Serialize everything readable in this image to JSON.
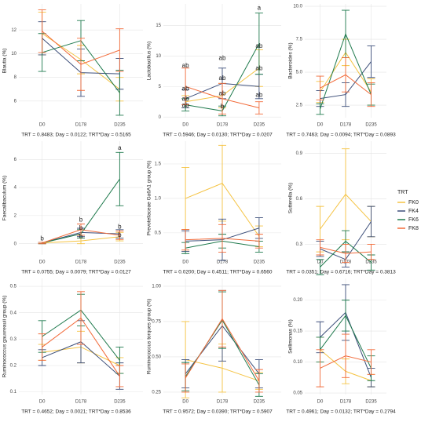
{
  "legend_title": "TRT",
  "chart_data": [
    {
      "type": "line",
      "ylabel": "Blautia (%)",
      "categories": [
        "D0",
        "D178",
        "D235"
      ],
      "ylim": [
        4.6,
        14.2
      ],
      "yticks": [
        6,
        8,
        10,
        12
      ],
      "series": [
        {
          "name": "FK0",
          "color": "#f5c342",
          "values": [
            11.7,
            9.5,
            7.0
          ],
          "errors": [
            1.8,
            1.2,
            1.0
          ]
        },
        {
          "name": "FK4",
          "color": "#3d4f7a",
          "values": [
            11.3,
            8.4,
            8.3
          ],
          "errors": [
            1.4,
            2.0,
            1.3
          ]
        },
        {
          "name": "FK6",
          "color": "#1f7a4d",
          "values": [
            10.1,
            11.1,
            6.7
          ],
          "errors": [
            1.6,
            1.7,
            1.9
          ]
        },
        {
          "name": "FK8",
          "color": "#f26b3a",
          "values": [
            11.9,
            9.1,
            10.3
          ],
          "errors": [
            1.8,
            2.2,
            1.8
          ]
        }
      ],
      "caption": "TRT = 0.8483; Day = 0.0122; TRT*Day = 0.5165"
    },
    {
      "type": "line",
      "ylabel": "Lactobacillus (%)",
      "categories": [
        "D0",
        "D178",
        "D235"
      ],
      "ylim": [
        -0.1,
        18.5
      ],
      "yticks": [
        0,
        5,
        10,
        15
      ],
      "series": [
        {
          "name": "FK0",
          "color": "#f5c342",
          "values": [
            2.5,
            3.5,
            8.0
          ],
          "errors": [
            1.0,
            2.0,
            3.0
          ]
        },
        {
          "name": "FK4",
          "color": "#3d4f7a",
          "values": [
            3.0,
            5.5,
            5.0
          ],
          "errors": [
            1.5,
            2.5,
            2.0
          ]
        },
        {
          "name": "FK6",
          "color": "#1f7a4d",
          "values": [
            2.0,
            1.0,
            12.0
          ],
          "errors": [
            1.0,
            0.8,
            5.0
          ]
        },
        {
          "name": "FK8",
          "color": "#f26b3a",
          "values": [
            5.0,
            3.0,
            1.5
          ],
          "errors": [
            3.0,
            2.5,
            1.0
          ]
        }
      ],
      "annotations": [
        {
          "text": "ab",
          "x": "D0",
          "y": 8.4
        },
        {
          "text": "ab",
          "x": "D0",
          "y": 4.6
        },
        {
          "text": "ab",
          "x": "D0",
          "y": 2.9
        },
        {
          "text": "ab",
          "x": "D0",
          "y": 1.9
        },
        {
          "text": "ab",
          "x": "D178",
          "y": 9.6
        },
        {
          "text": "ab",
          "x": "D178",
          "y": 6.3
        },
        {
          "text": "ab",
          "x": "D178",
          "y": 3.8
        },
        {
          "text": "b",
          "x": "D178",
          "y": 1.7
        },
        {
          "text": "a",
          "x": "D235",
          "y": 17.8
        },
        {
          "text": "ab",
          "x": "D235",
          "y": 11.6
        },
        {
          "text": "ab",
          "x": "D235",
          "y": 7.9
        },
        {
          "text": "ab",
          "x": "D235",
          "y": 3.6
        }
      ],
      "caption": "TRT = 0.5946; Day = 0.0130; TRT*Day = 0.0207"
    },
    {
      "type": "line",
      "ylabel": "Bacteroides (%)",
      "categories": [
        "D0",
        "D178",
        "D235"
      ],
      "ylim": [
        1.55,
        10.18
      ],
      "yticks": [
        2.5,
        {
          "value": 5,
          "label": "5.0"
        },
        7.5,
        {
          "value": 10,
          "label": "10.0"
        }
      ],
      "series": [
        {
          "name": "FK0",
          "color": "#f5c342",
          "values": [
            3.5,
            6.5,
            3.5
          ],
          "errors": [
            0.8,
            1.0,
            1.0
          ]
        },
        {
          "name": "FK4",
          "color": "#3d4f7a",
          "values": [
            3.0,
            3.3,
            5.8
          ],
          "errors": [
            0.6,
            0.9,
            1.2
          ]
        },
        {
          "name": "FK6",
          "color": "#1f7a4d",
          "values": [
            2.2,
            7.9,
            3.3
          ],
          "errors": [
            0.4,
            1.8,
            0.8
          ]
        },
        {
          "name": "FK8",
          "color": "#f26b3a",
          "values": [
            3.8,
            4.8,
            3.3
          ],
          "errors": [
            0.9,
            1.3,
            0.9
          ]
        }
      ],
      "caption": "TRT = 0.7463; Day = 0.0094; TRT*Day = 0.0893"
    },
    {
      "type": "line",
      "ylabel": "Faecalibaculum (%)",
      "categories": [
        "D0",
        "D178",
        "D235"
      ],
      "ylim": [
        -0.8,
        7.3
      ],
      "yticks": [
        0,
        2,
        4,
        6
      ],
      "series": [
        {
          "name": "FK0",
          "color": "#f5c342",
          "values": [
            0.05,
            0.2,
            0.5
          ],
          "errors": [
            0.05,
            0.2,
            0.3
          ]
        },
        {
          "name": "FK4",
          "color": "#3d4f7a",
          "values": [
            0.05,
            0.8,
            0.7
          ],
          "errors": [
            0.05,
            0.3,
            0.3
          ]
        },
        {
          "name": "FK6",
          "color": "#1f7a4d",
          "values": [
            0.05,
            0.7,
            4.6
          ],
          "errors": [
            0.05,
            0.3,
            1.9
          ]
        },
        {
          "name": "FK8",
          "color": "#f26b3a",
          "values": [
            0.05,
            1.0,
            0.6
          ],
          "errors": [
            0.05,
            0.4,
            0.3
          ]
        }
      ],
      "annotations": [
        {
          "text": "b",
          "x": "D0",
          "y": 0.35
        },
        {
          "text": "b",
          "x": "D178",
          "y": 1.7
        },
        {
          "text": "b",
          "x": "D178",
          "y": 1.1
        },
        {
          "text": "b",
          "x": "D178",
          "y": 0.5
        },
        {
          "text": "a",
          "x": "D235",
          "y": 6.8
        },
        {
          "text": "b",
          "x": "D235",
          "y": 1.2
        },
        {
          "text": "b",
          "x": "D235",
          "y": 0.6
        }
      ],
      "caption": "TRT = 0.0755; Day = 0.0079; TRT*Day = 0.0127"
    },
    {
      "type": "line",
      "ylabel": "Prevotellaceae Ga6A1 group (%)",
      "categories": [
        "D0",
        "D178",
        "D235"
      ],
      "ylim": [
        0.18,
        1.83
      ],
      "yticks": [
        0.5,
        {
          "value": 1,
          "label": "1.0"
        },
        1.5
      ],
      "series": [
        {
          "name": "FK0",
          "color": "#f5c342",
          "values": [
            1.0,
            1.22,
            0.45
          ],
          "errors": [
            0.45,
            0.55,
            0.15
          ]
        },
        {
          "name": "FK4",
          "color": "#3d4f7a",
          "values": [
            0.38,
            0.4,
            0.57
          ],
          "errors": [
            0.15,
            0.3,
            0.15
          ]
        },
        {
          "name": "FK6",
          "color": "#1f7a4d",
          "values": [
            0.28,
            0.38,
            0.3
          ],
          "errors": [
            0.08,
            0.1,
            0.08
          ]
        },
        {
          "name": "FK8",
          "color": "#f26b3a",
          "values": [
            0.4,
            0.42,
            0.38
          ],
          "errors": [
            0.15,
            0.2,
            0.1
          ]
        }
      ],
      "caption": "TRT = 0.0200; Day = 0.4511; TRT*Day = 0.6560"
    },
    {
      "type": "line",
      "ylabel": "Sutterella (%)",
      "categories": [
        "D0",
        "D178",
        "D235"
      ],
      "ylim": [
        0.23,
        0.98
      ],
      "yticks": [
        0.3,
        0.6,
        0.9
      ],
      "series": [
        {
          "name": "FK0",
          "color": "#f5c342",
          "values": [
            0.4,
            0.63,
            0.45
          ],
          "errors": [
            0.15,
            0.3,
            0.1
          ]
        },
        {
          "name": "FK4",
          "color": "#3d4f7a",
          "values": [
            0.27,
            0.2,
            0.45
          ],
          "errors": [
            0.05,
            0.05,
            0.1
          ]
        },
        {
          "name": "FK6",
          "color": "#1f7a4d",
          "values": [
            0.15,
            0.32,
            0.18
          ],
          "errors": [
            0.05,
            0.07,
            0.05
          ]
        },
        {
          "name": "FK8",
          "color": "#f26b3a",
          "values": [
            0.28,
            0.24,
            0.25
          ],
          "errors": [
            0.05,
            0.06,
            0.05
          ]
        }
      ],
      "caption": "TRT = 0.0351; Day = 0.6716; TRT*Day = 0.3813"
    },
    {
      "type": "line",
      "ylabel": "Ruminococcus gauvreauii group (%)",
      "categories": [
        "D0",
        "D178",
        "D235"
      ],
      "ylim": [
        0.09,
        0.53
      ],
      "yticks": [
        0.1,
        0.2,
        0.3,
        0.4,
        0.5
      ],
      "series": [
        {
          "name": "FK0",
          "color": "#f5c342",
          "values": [
            0.25,
            0.27,
            0.2
          ],
          "errors": [
            0.03,
            0.06,
            0.03
          ]
        },
        {
          "name": "FK4",
          "color": "#3d4f7a",
          "values": [
            0.23,
            0.29,
            0.16
          ],
          "errors": [
            0.03,
            0.08,
            0.05
          ]
        },
        {
          "name": "FK6",
          "color": "#1f7a4d",
          "values": [
            0.31,
            0.41,
            0.22
          ],
          "errors": [
            0.06,
            0.06,
            0.05
          ]
        },
        {
          "name": "FK8",
          "color": "#f26b3a",
          "values": [
            0.27,
            0.38,
            0.16
          ],
          "errors": [
            0.05,
            0.1,
            0.04
          ]
        }
      ],
      "caption": "TRT = 0.4652; Day = 0.0021; TRT*Day = 0.8536"
    },
    {
      "type": "line",
      "ylabel": "Ruminococcus torques group (%)",
      "categories": [
        "D0",
        "D178",
        "D235"
      ],
      "ylim": [
        0.233,
        1.055
      ],
      "yticks": [
        0.25,
        {
          "value": 0.5,
          "label": "0.50"
        },
        0.75,
        {
          "value": 1,
          "label": "1.00"
        }
      ],
      "series": [
        {
          "name": "FK0",
          "color": "#f5c342",
          "values": [
            0.48,
            0.42,
            0.33
          ],
          "errors": [
            0.27,
            0.17,
            0.06
          ]
        },
        {
          "name": "FK4",
          "color": "#3d4f7a",
          "values": [
            0.38,
            0.72,
            0.38
          ],
          "errors": [
            0.1,
            0.25,
            0.1
          ]
        },
        {
          "name": "FK6",
          "color": "#1f7a4d",
          "values": [
            0.36,
            0.76,
            0.3
          ],
          "errors": [
            0.1,
            0.2,
            0.08
          ]
        },
        {
          "name": "FK8",
          "color": "#f26b3a",
          "values": [
            0.35,
            0.77,
            0.33
          ],
          "errors": [
            0.1,
            0.2,
            0.08
          ]
        }
      ],
      "caption": "TRT = 0.9572; Day = 0.0390; TRT*Day = 0.5907"
    },
    {
      "type": "line",
      "ylabel": "Sellimonas (%)",
      "categories": [
        "D0",
        "D178",
        "D235"
      ],
      "ylim": [
        0.0475,
        0.235
      ],
      "yticks": [
        0.05,
        {
          "value": 0.1,
          "label": "0.10"
        },
        0.15,
        {
          "value": 0.2,
          "label": "0.20"
        }
      ],
      "series": [
        {
          "name": "FK0",
          "color": "#f5c342",
          "values": [
            0.12,
            0.085,
            0.07
          ],
          "errors": [
            0.02,
            0.02,
            0.01
          ]
        },
        {
          "name": "FK4",
          "color": "#3d4f7a",
          "values": [
            0.14,
            0.18,
            0.075
          ],
          "errors": [
            0.025,
            0.045,
            0.015
          ]
        },
        {
          "name": "FK6",
          "color": "#1f7a4d",
          "values": [
            0.12,
            0.175,
            0.09
          ],
          "errors": [
            0.02,
            0.025,
            0.02
          ]
        },
        {
          "name": "FK8",
          "color": "#f26b3a",
          "values": [
            0.09,
            0.11,
            0.1
          ],
          "errors": [
            0.03,
            0.035,
            0.02
          ]
        }
      ],
      "caption": "TRT = 0.4961; Day = 0.0132; TRT*Day = 0.2794"
    }
  ]
}
